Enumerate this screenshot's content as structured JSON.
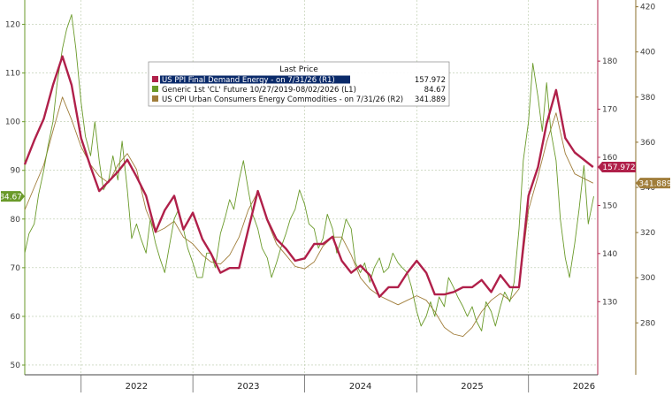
{
  "chart_data": {
    "type": "line",
    "x_range": [
      "2021-07-01",
      "2026-08-15"
    ],
    "x_ticks": [
      "2022",
      "2023",
      "2024",
      "2025",
      "2026"
    ],
    "grid": true,
    "legend_position": "top-left",
    "legend_title": "Last Price",
    "axes": {
      "L1": {
        "ylim": [
          48,
          125
        ],
        "ticks": [
          50,
          60,
          70,
          80,
          90,
          100,
          110,
          120
        ]
      },
      "R1": {
        "ylim": [
          114.8,
          192.7
        ],
        "ticks": [
          130,
          140,
          150,
          160,
          170,
          180
        ]
      },
      "R2": {
        "ylim": [
          257,
          423
        ],
        "ticks": [
          280,
          300,
          320,
          340,
          360,
          380,
          400,
          420
        ]
      }
    },
    "series": [
      {
        "name": "US PPI Final Demand Energy -  on 7/31/26  (R1)",
        "legend_value": "157.972",
        "last_label": "157.972",
        "axis": "R1",
        "color": "#b0204a",
        "points": [
          [
            "2021-07-01",
            158.5
          ],
          [
            "2021-08-01",
            163.5
          ],
          [
            "2021-09-01",
            168
          ],
          [
            "2021-10-01",
            175
          ],
          [
            "2021-11-01",
            181
          ],
          [
            "2021-12-01",
            175
          ],
          [
            "2022-01-01",
            164
          ],
          [
            "2022-02-01",
            158
          ],
          [
            "2022-03-01",
            153
          ],
          [
            "2022-04-01",
            155
          ],
          [
            "2022-05-01",
            157
          ],
          [
            "2022-06-01",
            159.5
          ],
          [
            "2022-07-01",
            156
          ],
          [
            "2022-08-01",
            152
          ],
          [
            "2022-09-01",
            144.5
          ],
          [
            "2022-10-01",
            149
          ],
          [
            "2022-11-01",
            152
          ],
          [
            "2022-12-01",
            145
          ],
          [
            "2023-01-01",
            148.5
          ],
          [
            "2023-02-01",
            143
          ],
          [
            "2023-03-01",
            140
          ],
          [
            "2023-04-01",
            136
          ],
          [
            "2023-05-01",
            137
          ],
          [
            "2023-06-01",
            137
          ],
          [
            "2023-07-01",
            145
          ],
          [
            "2023-08-01",
            153
          ],
          [
            "2023-09-01",
            147
          ],
          [
            "2023-10-01",
            143
          ],
          [
            "2023-11-01",
            141
          ],
          [
            "2023-12-01",
            138.5
          ],
          [
            "2024-01-01",
            139
          ],
          [
            "2024-02-01",
            142
          ],
          [
            "2024-03-01",
            142
          ],
          [
            "2024-04-01",
            143.5
          ],
          [
            "2024-05-01",
            138.5
          ],
          [
            "2024-06-01",
            136
          ],
          [
            "2024-07-01",
            137.5
          ],
          [
            "2024-08-01",
            135.5
          ],
          [
            "2024-09-01",
            131
          ],
          [
            "2024-10-01",
            133
          ],
          [
            "2024-11-01",
            133
          ],
          [
            "2024-12-01",
            136
          ],
          [
            "2025-01-01",
            138.5
          ],
          [
            "2025-02-01",
            136
          ],
          [
            "2025-03-01",
            131.5
          ],
          [
            "2025-04-01",
            131.5
          ],
          [
            "2025-05-01",
            132
          ],
          [
            "2025-06-01",
            133
          ],
          [
            "2025-07-01",
            133
          ],
          [
            "2025-08-01",
            134.5
          ],
          [
            "2025-09-01",
            132
          ],
          [
            "2025-10-01",
            135.5
          ],
          [
            "2025-11-01",
            133
          ],
          [
            "2025-12-01",
            133
          ],
          [
            "2026-01-01",
            152
          ],
          [
            "2026-02-01",
            158
          ],
          [
            "2026-03-01",
            167
          ],
          [
            "2026-04-01",
            174
          ],
          [
            "2026-05-01",
            164
          ],
          [
            "2026-06-01",
            161
          ],
          [
            "2026-07-31",
            157.972
          ]
        ]
      },
      {
        "name": "Generic 1st 'CL' Future 10/27/2019-08/02/2026  (L1)",
        "legend_value": "84.67",
        "last_label": "84.67",
        "axis": "L1",
        "color": "#6a9a2a",
        "points": [
          [
            "2021-07-01",
            73
          ],
          [
            "2021-07-15",
            77
          ],
          [
            "2021-08-01",
            79
          ],
          [
            "2021-08-15",
            85
          ],
          [
            "2021-09-01",
            90
          ],
          [
            "2021-09-15",
            95
          ],
          [
            "2021-10-01",
            100
          ],
          [
            "2021-10-15",
            108
          ],
          [
            "2021-11-01",
            115
          ],
          [
            "2021-11-15",
            119
          ],
          [
            "2021-12-01",
            122
          ],
          [
            "2021-12-15",
            115
          ],
          [
            "2022-01-01",
            104
          ],
          [
            "2022-01-15",
            97
          ],
          [
            "2022-02-01",
            93
          ],
          [
            "2022-02-15",
            100
          ],
          [
            "2022-03-01",
            92
          ],
          [
            "2022-03-15",
            86
          ],
          [
            "2022-04-01",
            88
          ],
          [
            "2022-04-15",
            93
          ],
          [
            "2022-05-01",
            88
          ],
          [
            "2022-05-15",
            96
          ],
          [
            "2022-06-01",
            86
          ],
          [
            "2022-06-15",
            76
          ],
          [
            "2022-07-01",
            79
          ],
          [
            "2022-07-15",
            76
          ],
          [
            "2022-08-01",
            73
          ],
          [
            "2022-08-15",
            80
          ],
          [
            "2022-09-01",
            75
          ],
          [
            "2022-09-15",
            72
          ],
          [
            "2022-10-01",
            69
          ],
          [
            "2022-10-15",
            74
          ],
          [
            "2022-11-01",
            80
          ],
          [
            "2022-11-15",
            82
          ],
          [
            "2022-12-01",
            78
          ],
          [
            "2022-12-15",
            74
          ],
          [
            "2023-01-01",
            71
          ],
          [
            "2023-01-15",
            68
          ],
          [
            "2023-02-01",
            68
          ],
          [
            "2023-02-15",
            73
          ],
          [
            "2023-03-01",
            73
          ],
          [
            "2023-03-15",
            70
          ],
          [
            "2023-04-01",
            77
          ],
          [
            "2023-04-15",
            80
          ],
          [
            "2023-05-01",
            84
          ],
          [
            "2023-05-15",
            82
          ],
          [
            "2023-06-01",
            88
          ],
          [
            "2023-06-15",
            92
          ],
          [
            "2023-07-01",
            86
          ],
          [
            "2023-07-15",
            81
          ],
          [
            "2023-08-01",
            78
          ],
          [
            "2023-08-15",
            74
          ],
          [
            "2023-09-01",
            72
          ],
          [
            "2023-09-15",
            68
          ],
          [
            "2023-10-01",
            71
          ],
          [
            "2023-10-15",
            74
          ],
          [
            "2023-11-01",
            77
          ],
          [
            "2023-11-15",
            80
          ],
          [
            "2023-12-01",
            82
          ],
          [
            "2023-12-15",
            86
          ],
          [
            "2024-01-01",
            83
          ],
          [
            "2024-01-15",
            79
          ],
          [
            "2024-02-01",
            78
          ],
          [
            "2024-02-15",
            74
          ],
          [
            "2024-03-01",
            76
          ],
          [
            "2024-03-15",
            81
          ],
          [
            "2024-04-01",
            78
          ],
          [
            "2024-04-15",
            73
          ],
          [
            "2024-05-01",
            76
          ],
          [
            "2024-05-15",
            80
          ],
          [
            "2024-06-01",
            78
          ],
          [
            "2024-06-15",
            71
          ],
          [
            "2024-07-01",
            69
          ],
          [
            "2024-07-15",
            71
          ],
          [
            "2024-08-01",
            67
          ],
          [
            "2024-08-15",
            70
          ],
          [
            "2024-09-01",
            72
          ],
          [
            "2024-09-15",
            69
          ],
          [
            "2024-10-01",
            70
          ],
          [
            "2024-10-15",
            73
          ],
          [
            "2024-11-01",
            71
          ],
          [
            "2024-11-15",
            70
          ],
          [
            "2024-12-01",
            69
          ],
          [
            "2024-12-15",
            66
          ],
          [
            "2025-01-01",
            61
          ],
          [
            "2025-01-15",
            58
          ],
          [
            "2025-02-01",
            60
          ],
          [
            "2025-02-15",
            63
          ],
          [
            "2025-03-01",
            60
          ],
          [
            "2025-03-15",
            64
          ],
          [
            "2025-04-01",
            62
          ],
          [
            "2025-04-15",
            68
          ],
          [
            "2025-05-01",
            66
          ],
          [
            "2025-05-15",
            64
          ],
          [
            "2025-06-01",
            62
          ],
          [
            "2025-06-15",
            60
          ],
          [
            "2025-07-01",
            62
          ],
          [
            "2025-07-15",
            59
          ],
          [
            "2025-08-01",
            57
          ],
          [
            "2025-08-15",
            63
          ],
          [
            "2025-09-01",
            61
          ],
          [
            "2025-09-15",
            58
          ],
          [
            "2025-10-01",
            62
          ],
          [
            "2025-10-15",
            65
          ],
          [
            "2025-11-01",
            63
          ],
          [
            "2025-11-15",
            67
          ],
          [
            "2025-12-01",
            78
          ],
          [
            "2025-12-15",
            92
          ],
          [
            "2026-01-01",
            100
          ],
          [
            "2026-01-15",
            112
          ],
          [
            "2026-02-01",
            105
          ],
          [
            "2026-02-15",
            98
          ],
          [
            "2026-03-01",
            108
          ],
          [
            "2026-03-15",
            98
          ],
          [
            "2026-04-01",
            92
          ],
          [
            "2026-04-15",
            80
          ],
          [
            "2026-05-01",
            72
          ],
          [
            "2026-05-15",
            68
          ],
          [
            "2026-06-01",
            75
          ],
          [
            "2026-06-15",
            82
          ],
          [
            "2026-07-01",
            91
          ],
          [
            "2026-07-15",
            79
          ],
          [
            "2026-08-02",
            84.67
          ]
        ]
      },
      {
        "name": "US CPI Urban Consumers Energy Commodities -  on 7/31/26  (R2)",
        "legend_value": "341.889",
        "last_label": "341.889",
        "axis": "R2",
        "color": "#a07d3a",
        "points": [
          [
            "2021-07-01",
            330
          ],
          [
            "2021-08-01",
            340
          ],
          [
            "2021-09-01",
            350
          ],
          [
            "2021-10-01",
            365
          ],
          [
            "2021-11-01",
            380
          ],
          [
            "2021-12-01",
            370
          ],
          [
            "2022-01-01",
            358
          ],
          [
            "2022-02-01",
            350
          ],
          [
            "2022-03-01",
            345
          ],
          [
            "2022-04-01",
            342
          ],
          [
            "2022-05-01",
            350
          ],
          [
            "2022-06-01",
            355
          ],
          [
            "2022-07-01",
            348
          ],
          [
            "2022-08-01",
            330
          ],
          [
            "2022-09-01",
            320
          ],
          [
            "2022-10-01",
            322
          ],
          [
            "2022-11-01",
            325
          ],
          [
            "2022-12-01",
            318
          ],
          [
            "2023-01-01",
            315
          ],
          [
            "2023-02-01",
            310
          ],
          [
            "2023-03-01",
            307
          ],
          [
            "2023-04-01",
            306
          ],
          [
            "2023-05-01",
            310
          ],
          [
            "2023-06-01",
            318
          ],
          [
            "2023-07-01",
            330
          ],
          [
            "2023-08-01",
            338
          ],
          [
            "2023-09-01",
            325
          ],
          [
            "2023-10-01",
            315
          ],
          [
            "2023-11-01",
            310
          ],
          [
            "2023-12-01",
            305
          ],
          [
            "2024-01-01",
            304
          ],
          [
            "2024-02-01",
            307
          ],
          [
            "2024-03-01",
            314
          ],
          [
            "2024-04-01",
            318
          ],
          [
            "2024-05-01",
            318
          ],
          [
            "2024-06-01",
            310
          ],
          [
            "2024-07-01",
            300
          ],
          [
            "2024-08-01",
            295
          ],
          [
            "2024-09-01",
            292
          ],
          [
            "2024-10-01",
            290
          ],
          [
            "2024-11-01",
            288
          ],
          [
            "2024-12-01",
            290
          ],
          [
            "2025-01-01",
            292
          ],
          [
            "2025-02-01",
            290
          ],
          [
            "2025-03-01",
            285
          ],
          [
            "2025-04-01",
            278
          ],
          [
            "2025-05-01",
            275
          ],
          [
            "2025-06-01",
            274
          ],
          [
            "2025-07-01",
            278
          ],
          [
            "2025-08-01",
            285
          ],
          [
            "2025-09-01",
            290
          ],
          [
            "2025-10-01",
            293
          ],
          [
            "2025-11-01",
            290
          ],
          [
            "2025-12-01",
            295
          ],
          [
            "2026-01-01",
            330
          ],
          [
            "2026-02-01",
            345
          ],
          [
            "2026-03-01",
            360
          ],
          [
            "2026-04-01",
            373
          ],
          [
            "2026-05-01",
            355
          ],
          [
            "2026-06-01",
            346
          ],
          [
            "2026-07-31",
            341.889
          ]
        ]
      }
    ]
  }
}
